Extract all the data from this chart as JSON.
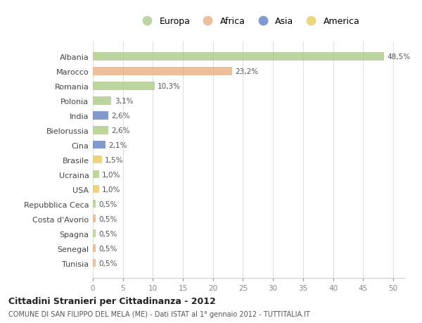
{
  "countries": [
    "Albania",
    "Marocco",
    "Romania",
    "Polonia",
    "India",
    "Bielorussia",
    "Cina",
    "Brasile",
    "Ucraina",
    "USA",
    "Repubblica Ceca",
    "Costa d'Avorio",
    "Spagna",
    "Senegal",
    "Tunisia"
  ],
  "values": [
    48.5,
    23.2,
    10.3,
    3.1,
    2.6,
    2.6,
    2.1,
    1.5,
    1.0,
    1.0,
    0.5,
    0.5,
    0.5,
    0.5,
    0.5
  ],
  "labels": [
    "48,5%",
    "23,2%",
    "10,3%",
    "3,1%",
    "2,6%",
    "2,6%",
    "2,1%",
    "1,5%",
    "1,0%",
    "1,0%",
    "0,5%",
    "0,5%",
    "0,5%",
    "0,5%",
    "0,5%"
  ],
  "continents": [
    "Europa",
    "Africa",
    "Europa",
    "Europa",
    "Asia",
    "Europa",
    "Asia",
    "America",
    "Europa",
    "America",
    "Europa",
    "Africa",
    "Europa",
    "Africa",
    "Africa"
  ],
  "colors": {
    "Europa": "#a8c882",
    "Africa": "#e8aa7a",
    "Asia": "#5878c0",
    "America": "#e8c855"
  },
  "legend_order": [
    "Europa",
    "Africa",
    "Asia",
    "America"
  ],
  "title1": "Cittadini Stranieri per Cittadinanza - 2012",
  "title2": "COMUNE DI SAN FILIPPO DEL MELA (ME) - Dati ISTAT al 1° gennaio 2012 - TUTTITALIA.IT",
  "xlim": [
    0,
    52
  ],
  "xticks": [
    0,
    5,
    10,
    15,
    20,
    25,
    30,
    35,
    40,
    45,
    50
  ],
  "background_color": "#ffffff",
  "grid_color": "#e0e0e0",
  "bar_alpha": 0.75
}
